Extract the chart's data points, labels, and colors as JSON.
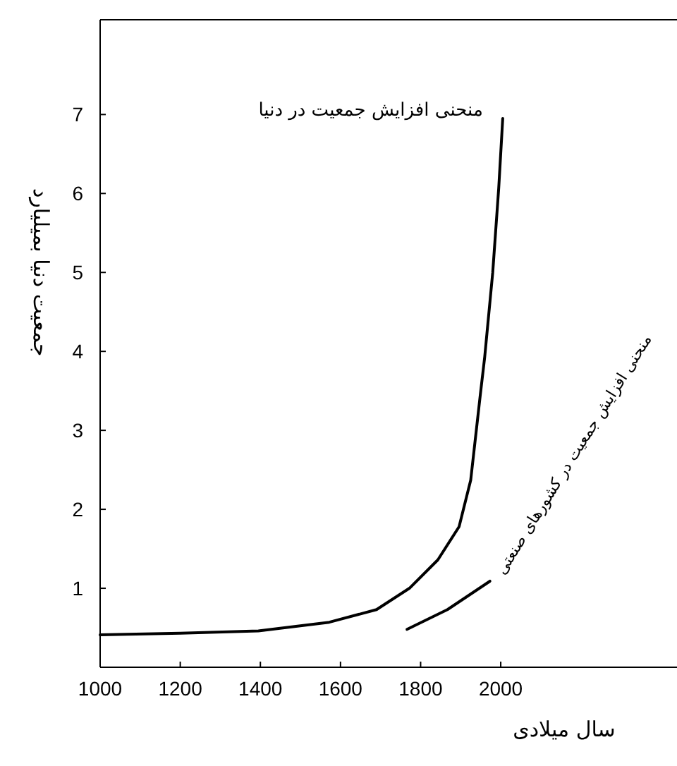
{
  "chart_data": {
    "type": "line",
    "xlabel": "سال میلادی",
    "ylabel": "جمعیت دنیا بمیلیارد",
    "xlim": [
      1000,
      2440
    ],
    "ylim": [
      0,
      8.2
    ],
    "xticks": [
      1000,
      1200,
      1400,
      1600,
      1800,
      2000
    ],
    "yticks": [
      1,
      2,
      3,
      4,
      5,
      6,
      7
    ],
    "grid": false,
    "marker": "none",
    "line_style": "solid",
    "series": [
      {
        "name": "منحنی افزایش جمعیت در دنیا",
        "color": "#000000",
        "x": [
          1000,
          1200,
          1395,
          1572,
          1690,
          1772,
          1843,
          1896,
          1925,
          1949,
          1960,
          1980,
          1995,
          2005
        ],
        "values": [
          0.41,
          0.43,
          0.46,
          0.57,
          0.73,
          1.0,
          1.36,
          1.78,
          2.37,
          3.45,
          3.93,
          5.0,
          6.07,
          6.95
        ]
      },
      {
        "name": "منحنی افزایش جمعیت در کشورهای صنعتی",
        "color": "#000000",
        "x": [
          1766,
          1867,
          1973
        ],
        "values": [
          0.48,
          0.73,
          1.09
        ]
      }
    ]
  }
}
